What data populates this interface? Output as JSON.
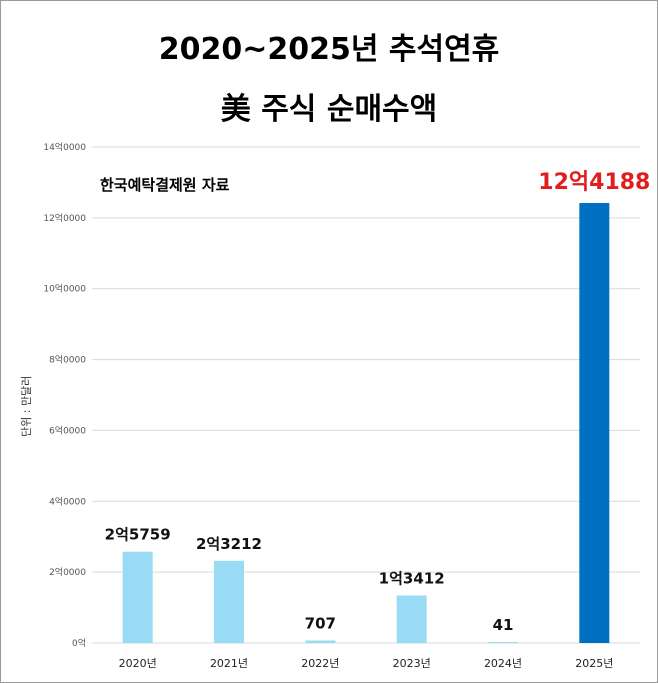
{
  "chart_data": {
    "type": "bar",
    "title": "2020~2025년 추석연휴",
    "subtitle": "美 주식 순매수액",
    "source_note": "한국예탁결제원 자료",
    "ylabel": "단위 : 만달러",
    "categories": [
      "2020년",
      "2021년",
      "2022년",
      "2023년",
      "2024년",
      "2025년"
    ],
    "values": [
      25759,
      23212,
      707,
      13412,
      41,
      124188
    ],
    "data_labels": [
      "2억5759",
      "2억3212",
      "707",
      "1억3412",
      "41",
      "12억4188"
    ],
    "highlight_index": 5,
    "ylim": [
      0,
      140000
    ],
    "yticks": [
      {
        "value": 0,
        "label": "0억"
      },
      {
        "value": 20000,
        "label": "2억0000"
      },
      {
        "value": 40000,
        "label": "4억0000"
      },
      {
        "value": 60000,
        "label": "6억0000"
      },
      {
        "value": 80000,
        "label": "8억0000"
      },
      {
        "value": 100000,
        "label": "10억0000"
      },
      {
        "value": 120000,
        "label": "12억0000"
      },
      {
        "value": 140000,
        "label": "14억0000"
      }
    ],
    "grid": true,
    "colors": {
      "bar": "#99dbf5",
      "highlight_bar": "#0070c0",
      "highlight_label": "#e11d1d",
      "grid": "#d9d9d9"
    }
  }
}
